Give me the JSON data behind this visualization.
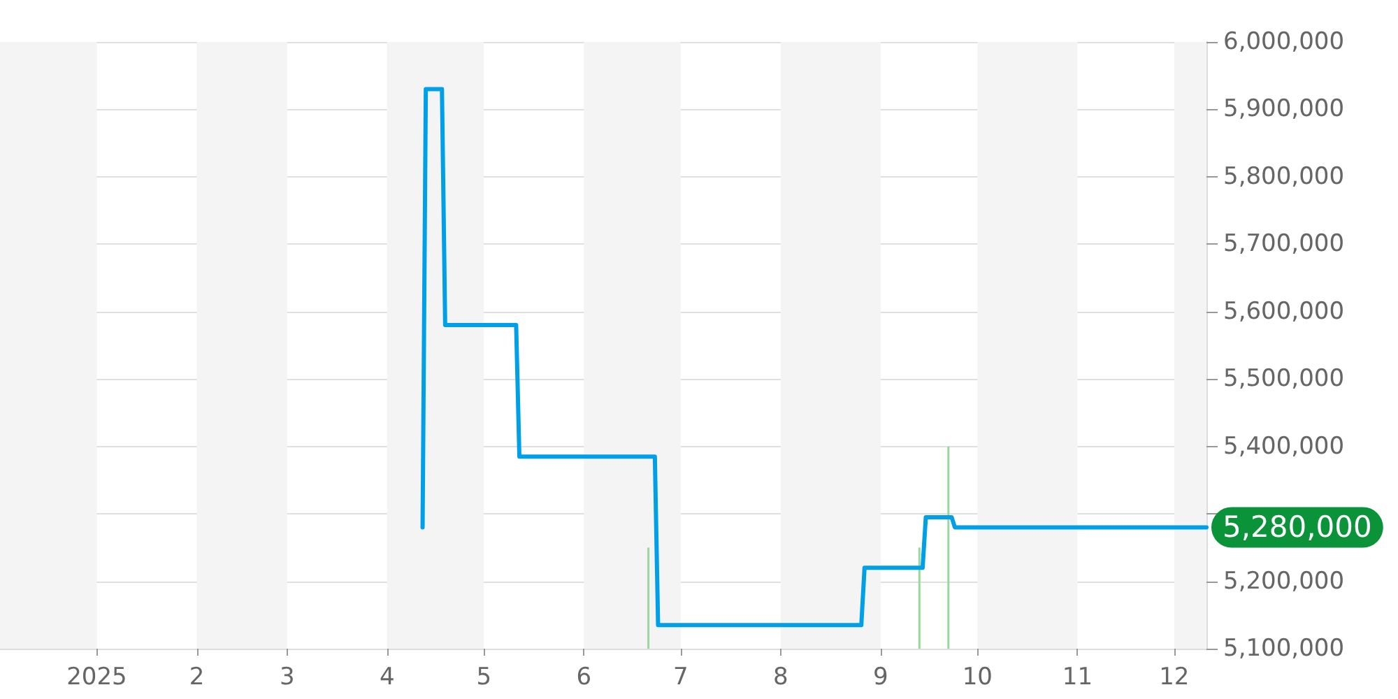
{
  "chart_data": {
    "type": "line",
    "xlim": [
      "2024-12-02",
      "2025-12-11"
    ],
    "xticks": [
      {
        "value": "2025-01-01",
        "label": "2025"
      },
      {
        "value": "2025-02-01",
        "label": "2"
      },
      {
        "value": "2025-03-01",
        "label": "3"
      },
      {
        "value": "2025-04-01",
        "label": "4"
      },
      {
        "value": "2025-05-01",
        "label": "5"
      },
      {
        "value": "2025-06-01",
        "label": "6"
      },
      {
        "value": "2025-07-01",
        "label": "7"
      },
      {
        "value": "2025-08-01",
        "label": "8"
      },
      {
        "value": "2025-09-01",
        "label": "9"
      },
      {
        "value": "2025-10-01",
        "label": "10"
      },
      {
        "value": "2025-11-01",
        "label": "11"
      },
      {
        "value": "2025-12-01",
        "label": "12"
      }
    ],
    "ylim": [
      5100000,
      6000000
    ],
    "yticks": [
      {
        "value": 5100000,
        "label": "5,100,000"
      },
      {
        "value": 5200000,
        "label": "5,200,000"
      },
      {
        "value": 5300000,
        "label": null
      },
      {
        "value": 5400000,
        "label": "5,400,000"
      },
      {
        "value": 5500000,
        "label": "5,500,000"
      },
      {
        "value": 5600000,
        "label": "5,600,000"
      },
      {
        "value": 5700000,
        "label": "5,700,000"
      },
      {
        "value": 5800000,
        "label": "5,800,000"
      },
      {
        "value": 5900000,
        "label": "5,900,000"
      },
      {
        "value": 6000000,
        "label": "6,000,000"
      }
    ],
    "grid": "y",
    "series": [
      {
        "color": "#00a0e9",
        "x": [
          "2025-04-12",
          "2025-04-13",
          "2025-04-18",
          "2025-04-19",
          "2025-05-11",
          "2025-05-12",
          "2025-06-23",
          "2025-06-24",
          "2025-08-26",
          "2025-08-27",
          "2025-09-14",
          "2025-09-15",
          "2025-09-23",
          "2025-09-24",
          "2025-12-11"
        ],
        "values": [
          5280000,
          5930000,
          5930000,
          5580000,
          5580000,
          5385000,
          5385000,
          5135000,
          5135000,
          5220000,
          5220000,
          5295000,
          5295000,
          5280000,
          5280000
        ]
      },
      {
        "type": "bar",
        "color": "#99d6a0",
        "x": [
          "2025-06-21",
          "2025-09-13",
          "2025-09-22"
        ],
        "values": [
          5250000,
          5250000,
          5400000
        ]
      }
    ],
    "bands": [
      {
        "axis": "x",
        "from": "2024-12-02",
        "to": "2025-01-01",
        "color": "#f4f4f4"
      },
      {
        "axis": "x",
        "from": "2025-02-01",
        "to": "2025-03-01",
        "color": "#f4f4f4"
      },
      {
        "axis": "x",
        "from": "2025-04-01",
        "to": "2025-05-01",
        "color": "#f4f4f4"
      },
      {
        "axis": "x",
        "from": "2025-06-01",
        "to": "2025-07-01",
        "color": "#f4f4f4"
      },
      {
        "axis": "x",
        "from": "2025-08-01",
        "to": "2025-09-01",
        "color": "#f4f4f4"
      },
      {
        "axis": "x",
        "from": "2025-10-01",
        "to": "2025-11-01",
        "color": "#f4f4f4"
      },
      {
        "axis": "x",
        "from": "2025-12-01",
        "to": "2025-12-11",
        "color": "#f4f4f4"
      }
    ],
    "annotations": [
      {
        "text": "5,280,000",
        "x": "2025-12-11",
        "y": 5280000
      }
    ],
    "marker": "none",
    "line_style": "solid"
  }
}
